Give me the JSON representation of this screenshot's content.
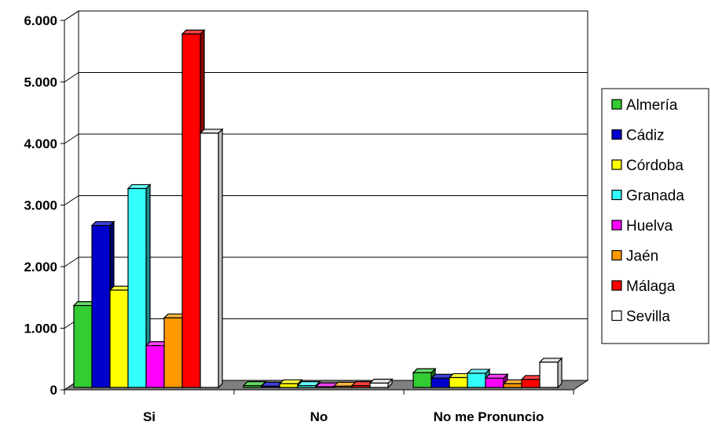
{
  "chart_data": {
    "type": "bar",
    "categories": [
      "Si",
      "No",
      "No me Pronuncio"
    ],
    "series": [
      {
        "name": "Almería",
        "color": "#33cc33",
        "values": [
          1330,
          30,
          240
        ]
      },
      {
        "name": "Cádiz",
        "color": "#0000cc",
        "values": [
          2630,
          20,
          150
        ]
      },
      {
        "name": "Córdoba",
        "color": "#ffff00",
        "values": [
          1580,
          60,
          160
        ]
      },
      {
        "name": "Granada",
        "color": "#33ffff",
        "values": [
          3230,
          30,
          230
        ]
      },
      {
        "name": "Huelva",
        "color": "#ff00ff",
        "values": [
          680,
          10,
          150
        ]
      },
      {
        "name": "Jaén",
        "color": "#ff9900",
        "values": [
          1130,
          20,
          60
        ]
      },
      {
        "name": "Málaga",
        "color": "#ff0000",
        "values": [
          5740,
          30,
          130
        ]
      },
      {
        "name": "Sevilla",
        "color": "#ffffff",
        "values": [
          4130,
          70,
          410
        ]
      }
    ],
    "y_ticks": [
      "0",
      "1.000",
      "2.000",
      "3.000",
      "4.000",
      "5.000",
      "6.000"
    ],
    "ylim": [
      0,
      6000
    ],
    "title": "",
    "xlabel": "",
    "ylabel": "",
    "grid": true,
    "legend_position": "right",
    "wall_color": "#ffffff",
    "floor_color": "#808080"
  }
}
